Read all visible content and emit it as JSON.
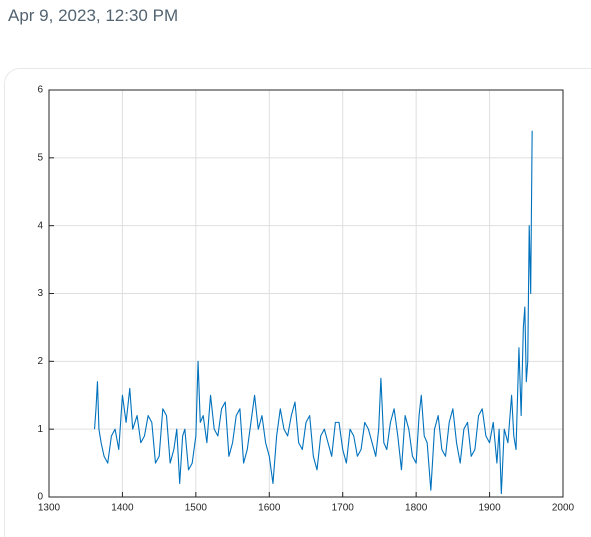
{
  "timestamp": "Apr 9, 2023, 12:30 PM",
  "chart_data": {
    "type": "line",
    "series": [
      {
        "color": "#0072bd",
        "x": [
          1362,
          1364,
          1366,
          1368,
          1371,
          1375,
          1380,
          1385,
          1390,
          1395,
          1400,
          1405,
          1410,
          1414,
          1420,
          1425,
          1430,
          1435,
          1440,
          1445,
          1450,
          1455,
          1460,
          1465,
          1470,
          1474,
          1478,
          1482,
          1485,
          1490,
          1495,
          1500,
          1503,
          1506,
          1510,
          1515,
          1520,
          1525,
          1530,
          1535,
          1540,
          1545,
          1550,
          1555,
          1560,
          1565,
          1570,
          1575,
          1580,
          1585,
          1590,
          1595,
          1600,
          1605,
          1610,
          1615,
          1620,
          1625,
          1630,
          1635,
          1640,
          1645,
          1650,
          1655,
          1660,
          1665,
          1670,
          1675,
          1680,
          1685,
          1690,
          1695,
          1700,
          1705,
          1710,
          1715,
          1720,
          1725,
          1730,
          1735,
          1740,
          1745,
          1749,
          1752,
          1756,
          1760,
          1765,
          1770,
          1775,
          1780,
          1785,
          1790,
          1795,
          1800,
          1804,
          1807,
          1811,
          1815,
          1820,
          1825,
          1830,
          1835,
          1840,
          1845,
          1850,
          1855,
          1860,
          1865,
          1870,
          1875,
          1880,
          1885,
          1890,
          1895,
          1900,
          1905,
          1910,
          1913,
          1916,
          1920,
          1925,
          1930,
          1933,
          1936,
          1940,
          1943,
          1946,
          1948,
          1950,
          1952,
          1954,
          1956,
          1958
        ],
        "values": [
          1.0,
          1.3,
          1.7,
          1.0,
          0.8,
          0.6,
          0.5,
          0.9,
          1.0,
          0.7,
          1.5,
          1.1,
          1.6,
          1.0,
          1.2,
          0.8,
          0.9,
          1.2,
          1.1,
          0.5,
          0.6,
          1.3,
          1.2,
          0.5,
          0.7,
          1.0,
          0.2,
          0.9,
          1.0,
          0.4,
          0.5,
          0.9,
          2.0,
          1.1,
          1.2,
          0.8,
          1.5,
          1.0,
          0.9,
          1.3,
          1.4,
          0.6,
          0.8,
          1.2,
          1.3,
          0.5,
          0.7,
          1.1,
          1.5,
          1.0,
          1.2,
          0.8,
          0.6,
          0.2,
          0.9,
          1.3,
          1.0,
          0.9,
          1.2,
          1.4,
          0.8,
          0.7,
          1.1,
          1.2,
          0.6,
          0.4,
          0.9,
          1.0,
          0.8,
          0.6,
          1.1,
          1.1,
          0.7,
          0.5,
          1.0,
          0.9,
          0.6,
          0.7,
          1.1,
          1.0,
          0.8,
          0.6,
          1.0,
          1.75,
          0.8,
          0.7,
          1.1,
          1.3,
          0.9,
          0.4,
          1.2,
          1.0,
          0.6,
          0.5,
          1.2,
          1.5,
          0.9,
          0.8,
          0.1,
          1.0,
          1.2,
          0.7,
          0.6,
          1.1,
          1.3,
          0.8,
          0.5,
          1.0,
          1.1,
          0.6,
          0.7,
          1.2,
          1.3,
          0.9,
          0.8,
          1.1,
          0.5,
          1.0,
          0.05,
          1.0,
          0.8,
          1.5,
          0.9,
          0.7,
          2.2,
          1.2,
          2.5,
          2.8,
          1.7,
          2.0,
          4.0,
          3.0,
          5.4
        ]
      }
    ],
    "xlim": [
      1300,
      2000
    ],
    "xticks": [
      1300,
      1400,
      1500,
      1600,
      1700,
      1800,
      1900,
      2000
    ],
    "ylim": [
      0,
      6
    ],
    "yticks": [
      0,
      1,
      2,
      3,
      4,
      5,
      6
    ],
    "grid": true
  }
}
